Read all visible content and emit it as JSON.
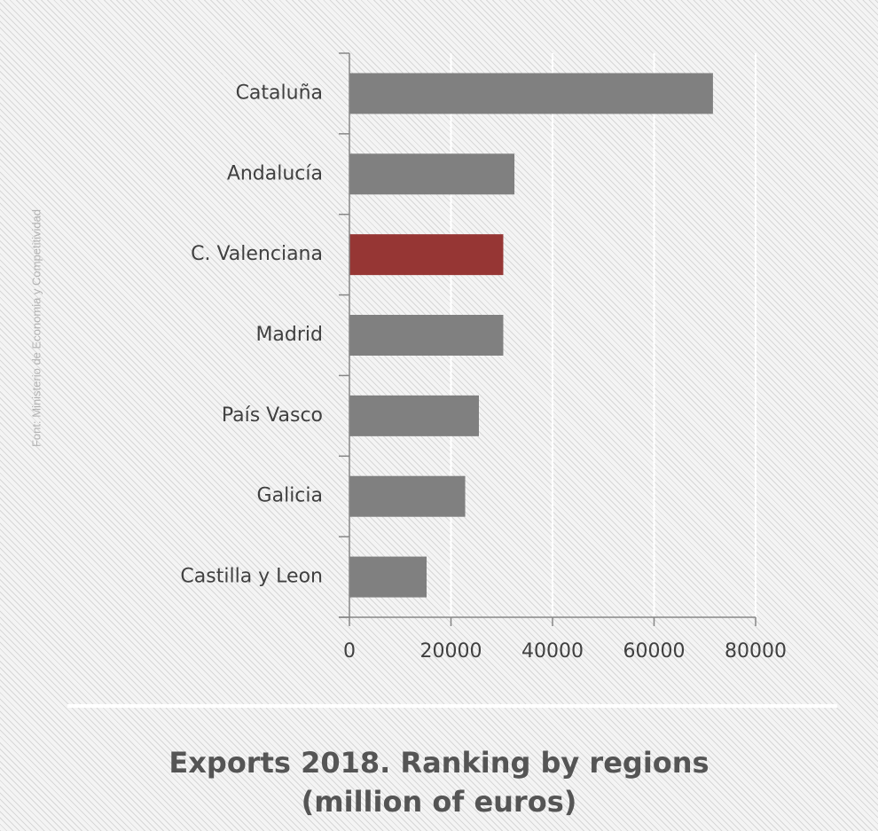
{
  "source_note": "Font: Ministerio de Economia y Competitividad",
  "chart_data": {
    "type": "bar",
    "orientation": "horizontal",
    "title_line1": "Exports 2018. Ranking by regions",
    "title_line2": "(million of euros)",
    "categories": [
      "Cataluña",
      "Andalucía",
      "C. Valenciana",
      "Madrid",
      "País Vasco",
      "Galicia",
      "Castilla y Leon"
    ],
    "values": [
      71600,
      32500,
      30300,
      30300,
      25500,
      22800,
      15200
    ],
    "highlight": "C. Valenciana",
    "xlim": [
      0,
      80000
    ],
    "xticks": [
      "0",
      "20000",
      "40000",
      "60000",
      "80000"
    ],
    "grid": true,
    "colors": {
      "bar": "#808080",
      "highlight": "#963634",
      "axis": "#868686",
      "grid": "#ffffff",
      "text": "#404040"
    }
  }
}
